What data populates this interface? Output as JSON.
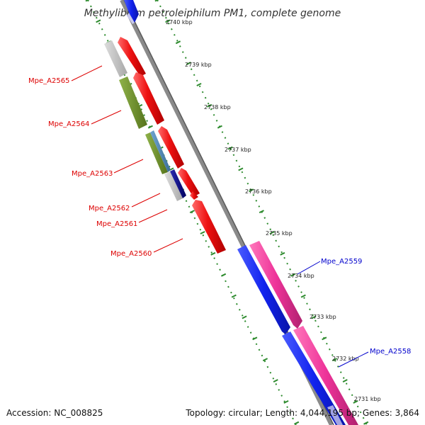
{
  "title": "Methylibium petroleiphilum PM1, complete genome",
  "accession_text": "Accession: NC_008825",
  "topology_text": "Topology: circular; Length: 4,044,195 bp; Genes: 3,864",
  "colors": {
    "backbone": "#8a8a8a",
    "forward_ruler": "#2e8b2e",
    "reverse_label": "#dd0000",
    "forward_label": "#0000cc",
    "red_gene": "#ee1111",
    "blue_gene": "#1122ee",
    "pink_gene": "#ee3399",
    "olive_gene": "#6b8e23",
    "grey_gene": "#bbbbbb",
    "steel_gene": "#4682b4",
    "navy_gene": "#000080"
  },
  "ruler_ticks": [
    {
      "label": "2740 kbp"
    },
    {
      "label": "2739 kbp"
    },
    {
      "label": "2738 kbp"
    },
    {
      "label": "2737 kbp"
    },
    {
      "label": "2736 kbp"
    },
    {
      "label": "2735 kbp"
    },
    {
      "label": "2734 kbp"
    },
    {
      "label": "2733 kbp"
    },
    {
      "label": "2732 kbp"
    },
    {
      "label": "2731 kbp"
    }
  ],
  "gene_labels": [
    {
      "name": "Mpe_A2565",
      "strand": "reverse"
    },
    {
      "name": "Mpe_A2564",
      "strand": "reverse"
    },
    {
      "name": "Mpe_A2563",
      "strand": "reverse"
    },
    {
      "name": "Mpe_A2562",
      "strand": "reverse"
    },
    {
      "name": "Mpe_A2561",
      "strand": "reverse"
    },
    {
      "name": "Mpe_A2560",
      "strand": "reverse"
    },
    {
      "name": "Mpe_A2559",
      "strand": "forward"
    },
    {
      "name": "Mpe_A2558",
      "strand": "forward"
    }
  ]
}
